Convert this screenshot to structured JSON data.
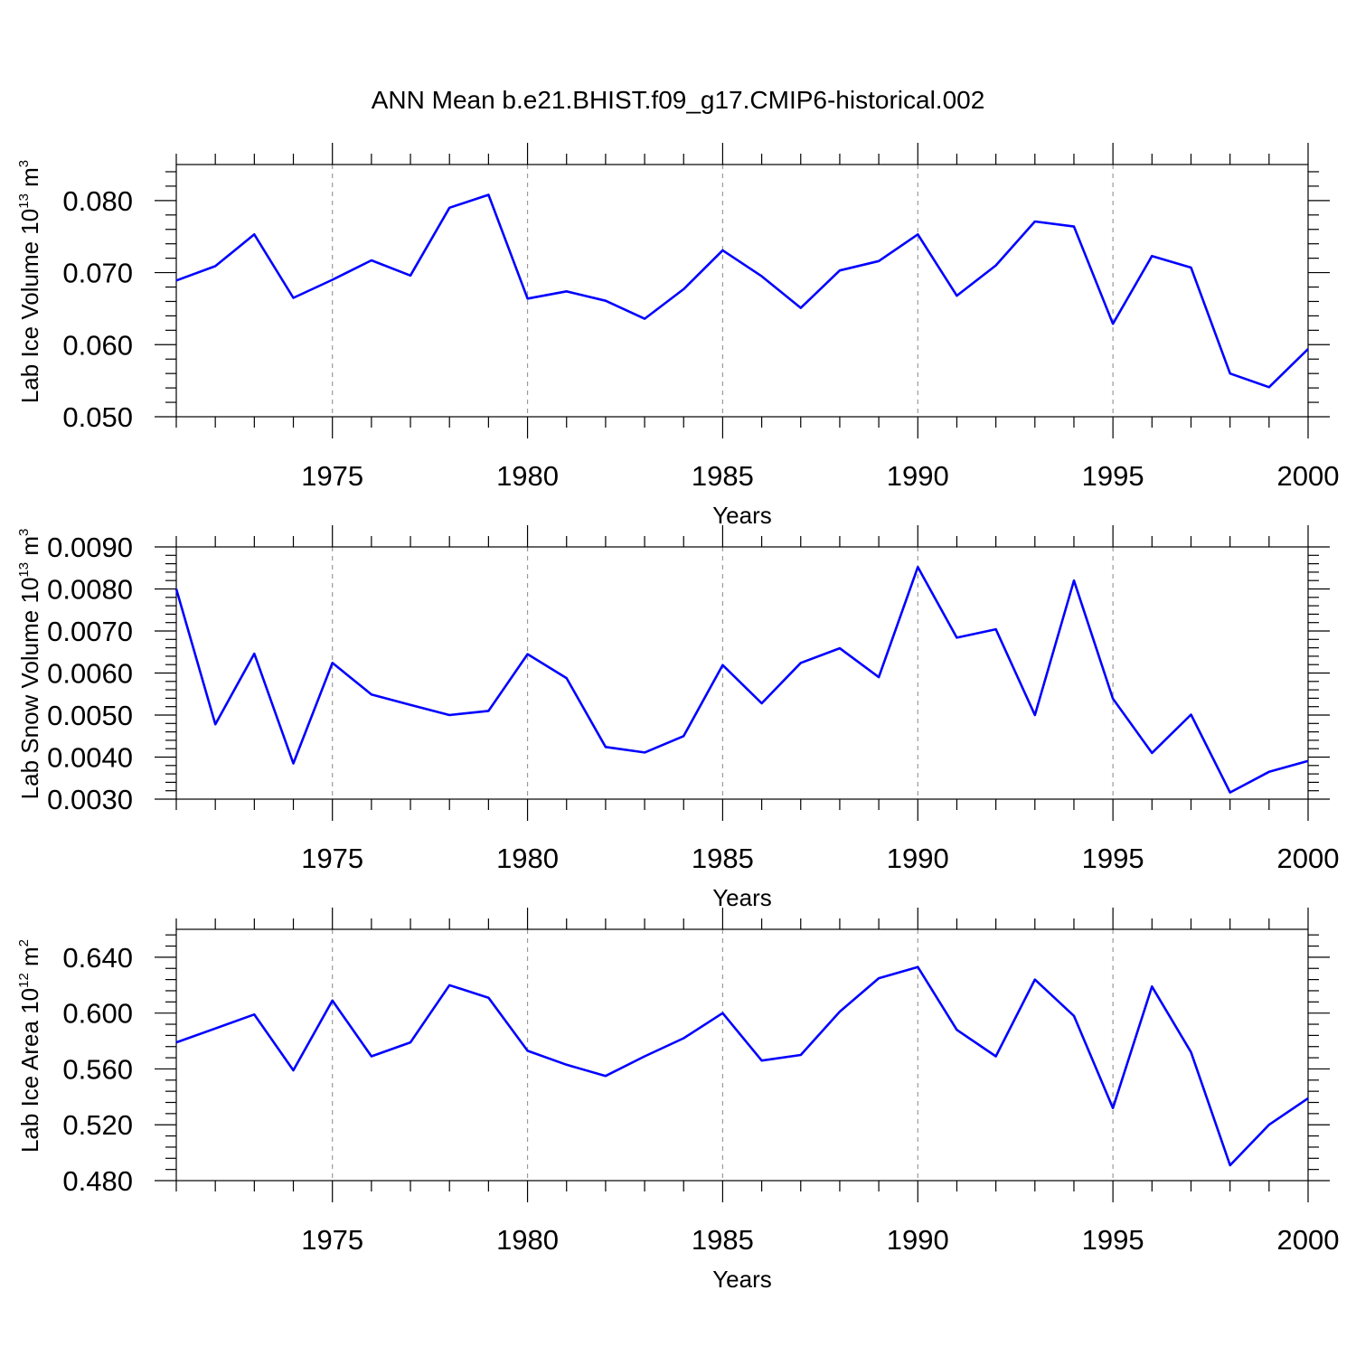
{
  "title": "ANN Mean b.e21.BHIST.f09_g17.CMIP6-historical.002",
  "colors": {
    "line": "#0000ff",
    "grid": "#9a9a9a",
    "axis": "#000000"
  },
  "chart_data": [
    {
      "type": "line",
      "title": "ANN Mean b.e21.BHIST.f09_g17.CMIP6-historical.002",
      "xlabel": "Years",
      "ylabel_main": "Lab Ice Volume 10",
      "ylabel_exp": "13",
      "ylabel_unit": " m",
      "ylabel_unit_exp": "3",
      "xlim": [
        1971,
        2000
      ],
      "ylim": [
        0.05,
        0.085
      ],
      "yticks": [
        0.05,
        0.06,
        0.07,
        0.08
      ],
      "ytick_labels": [
        "0.050",
        "0.060",
        "0.070",
        "0.080"
      ],
      "xticks": [
        1975,
        1980,
        1985,
        1990,
        1995,
        2000
      ],
      "xtick_labels": [
        "1975",
        "1980",
        "1985",
        "1990",
        "1995",
        "2000"
      ],
      "grid_x": [
        1975,
        1980,
        1985,
        1990,
        1995
      ],
      "series": [
        {
          "name": "Lab Ice Volume",
          "x": [
            1971,
            1972,
            1973,
            1974,
            1975,
            1976,
            1977,
            1978,
            1979,
            1980,
            1981,
            1982,
            1983,
            1984,
            1985,
            1986,
            1987,
            1988,
            1989,
            1990,
            1991,
            1992,
            1993,
            1994,
            1995,
            1996,
            1997,
            1998,
            1999,
            2000
          ],
          "values": [
            0.0689,
            0.0709,
            0.0753,
            0.0665,
            0.069,
            0.0717,
            0.0696,
            0.079,
            0.0808,
            0.0664,
            0.0674,
            0.0661,
            0.0636,
            0.0677,
            0.0731,
            0.0695,
            0.0651,
            0.0703,
            0.0716,
            0.0753,
            0.0668,
            0.071,
            0.0771,
            0.0764,
            0.0629,
            0.0723,
            0.0707,
            0.056,
            0.0541,
            0.0594
          ]
        }
      ]
    },
    {
      "type": "line",
      "xlabel": "Years",
      "ylabel_main": "Lab Snow Volume 10",
      "ylabel_exp": "13",
      "ylabel_unit": " m",
      "ylabel_unit_exp": "3",
      "xlim": [
        1971,
        2000
      ],
      "ylim": [
        0.003,
        0.009
      ],
      "yticks": [
        0.003,
        0.004,
        0.005,
        0.006,
        0.007,
        0.008,
        0.009
      ],
      "ytick_labels": [
        "0.0030",
        "0.0040",
        "0.0050",
        "0.0060",
        "0.0070",
        "0.0080",
        "0.0090"
      ],
      "xticks": [
        1975,
        1980,
        1985,
        1990,
        1995,
        2000
      ],
      "xtick_labels": [
        "1975",
        "1980",
        "1985",
        "1990",
        "1995",
        "2000"
      ],
      "grid_x": [
        1975,
        1980,
        1985,
        1990,
        1995
      ],
      "series": [
        {
          "name": "Lab Snow Volume",
          "x": [
            1971,
            1972,
            1973,
            1974,
            1975,
            1976,
            1977,
            1978,
            1979,
            1980,
            1981,
            1982,
            1983,
            1984,
            1985,
            1986,
            1987,
            1988,
            1989,
            1990,
            1991,
            1992,
            1993,
            1994,
            1995,
            1996,
            1997,
            1998,
            1999,
            2000
          ],
          "values": [
            0.008,
            0.00478,
            0.00646,
            0.00385,
            0.00624,
            0.00549,
            0.00524,
            0.005,
            0.0051,
            0.00645,
            0.00588,
            0.00424,
            0.00411,
            0.0045,
            0.00619,
            0.00528,
            0.00624,
            0.00659,
            0.0059,
            0.00852,
            0.00684,
            0.00704,
            0.005,
            0.0082,
            0.00539,
            0.0041,
            0.00501,
            0.00316,
            0.00365,
            0.00391
          ]
        }
      ]
    },
    {
      "type": "line",
      "xlabel": "Years",
      "ylabel_main": "Lab Ice Area 10",
      "ylabel_exp": "12",
      "ylabel_unit": " m",
      "ylabel_unit_exp": "2",
      "xlim": [
        1971,
        2000
      ],
      "ylim": [
        0.48,
        0.66
      ],
      "yticks": [
        0.48,
        0.52,
        0.56,
        0.6,
        0.64
      ],
      "ytick_labels": [
        "0.480",
        "0.520",
        "0.560",
        "0.600",
        "0.640"
      ],
      "xticks": [
        1975,
        1980,
        1985,
        1990,
        1995,
        2000
      ],
      "xtick_labels": [
        "1975",
        "1980",
        "1985",
        "1990",
        "1995",
        "2000"
      ],
      "grid_x": [
        1975,
        1980,
        1985,
        1990,
        1995
      ],
      "series": [
        {
          "name": "Lab Ice Area",
          "x": [
            1971,
            1972,
            1973,
            1974,
            1975,
            1976,
            1977,
            1978,
            1979,
            1980,
            1981,
            1982,
            1983,
            1984,
            1985,
            1986,
            1987,
            1988,
            1989,
            1990,
            1991,
            1992,
            1993,
            1994,
            1995,
            1996,
            1997,
            1998,
            1999,
            2000
          ],
          "values": [
            0.579,
            0.589,
            0.599,
            0.559,
            0.609,
            0.569,
            0.579,
            0.62,
            0.611,
            0.573,
            0.563,
            0.555,
            0.569,
            0.582,
            0.6,
            0.566,
            0.57,
            0.601,
            0.625,
            0.633,
            0.588,
            0.569,
            0.624,
            0.598,
            0.532,
            0.619,
            0.572,
            0.491,
            0.52,
            0.539
          ]
        }
      ]
    }
  ]
}
